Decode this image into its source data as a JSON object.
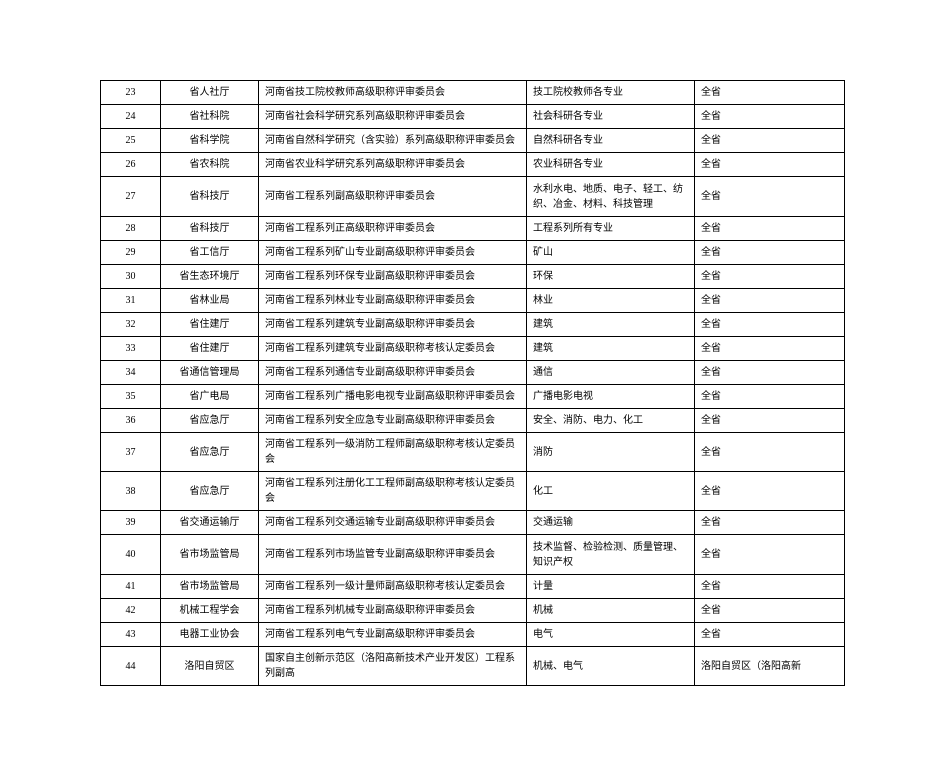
{
  "table": {
    "columns": [
      {
        "key": "num",
        "class": "col-num"
      },
      {
        "key": "dept",
        "class": "col-dept"
      },
      {
        "key": "committee",
        "class": "col-committee"
      },
      {
        "key": "specialty",
        "class": "col-specialty"
      },
      {
        "key": "scope",
        "class": "col-scope"
      }
    ],
    "rows": [
      {
        "num": "23",
        "dept": "省人社厅",
        "committee": "河南省技工院校教师高级职称评审委员会",
        "specialty": "技工院校教师各专业",
        "scope": "全省",
        "tall": false
      },
      {
        "num": "24",
        "dept": "省社科院",
        "committee": "河南省社会科学研究系列高级职称评审委员会",
        "specialty": "社会科研各专业",
        "scope": "全省",
        "tall": false
      },
      {
        "num": "25",
        "dept": "省科学院",
        "committee": "河南省自然科学研究（含实验）系列高级职称评审委员会",
        "specialty": "自然科研各专业",
        "scope": "全省",
        "tall": false
      },
      {
        "num": "26",
        "dept": "省农科院",
        "committee": "河南省农业科学研究系列高级职称评审委员会",
        "specialty": "农业科研各专业",
        "scope": "全省",
        "tall": false
      },
      {
        "num": "27",
        "dept": "省科技厅",
        "committee": "河南省工程系列副高级职称评审委员会",
        "specialty": "水利水电、地质、电子、轻工、纺织、冶金、材料、科技管理",
        "scope": "全省",
        "tall": true
      },
      {
        "num": "28",
        "dept": "省科技厅",
        "committee": "河南省工程系列正高级职称评审委员会",
        "specialty": "工程系列所有专业",
        "scope": "全省",
        "tall": false
      },
      {
        "num": "29",
        "dept": "省工信厅",
        "committee": "河南省工程系列矿山专业副高级职称评审委员会",
        "specialty": "矿山",
        "scope": "全省",
        "tall": false
      },
      {
        "num": "30",
        "dept": "省生态环境厅",
        "committee": "河南省工程系列环保专业副高级职称评审委员会",
        "specialty": "环保",
        "scope": "全省",
        "tall": false
      },
      {
        "num": "31",
        "dept": "省林业局",
        "committee": "河南省工程系列林业专业副高级职称评审委员会",
        "specialty": "林业",
        "scope": "全省",
        "tall": false
      },
      {
        "num": "32",
        "dept": "省住建厅",
        "committee": "河南省工程系列建筑专业副高级职称评审委员会",
        "specialty": "建筑",
        "scope": "全省",
        "tall": false
      },
      {
        "num": "33",
        "dept": "省住建厅",
        "committee": "河南省工程系列建筑专业副高级职称考核认定委员会",
        "specialty": "建筑",
        "scope": "全省",
        "tall": false
      },
      {
        "num": "34",
        "dept": "省通信管理局",
        "committee": "河南省工程系列通信专业副高级职称评审委员会",
        "specialty": "通信",
        "scope": "全省",
        "tall": false
      },
      {
        "num": "35",
        "dept": "省广电局",
        "committee": "河南省工程系列广播电影电视专业副高级职称评审委员会",
        "specialty": "广播电影电视",
        "scope": "全省",
        "tall": false
      },
      {
        "num": "36",
        "dept": "省应急厅",
        "committee": "河南省工程系列安全应急专业副高级职称评审委员会",
        "specialty": "安全、消防、电力、化工",
        "scope": "全省",
        "tall": false
      },
      {
        "num": "37",
        "dept": "省应急厅",
        "committee": "河南省工程系列一级消防工程师副高级职称考核认定委员会",
        "specialty": "消防",
        "scope": "全省",
        "tall": false
      },
      {
        "num": "38",
        "dept": "省应急厅",
        "committee": "河南省工程系列注册化工工程师副高级职称考核认定委员会",
        "specialty": "化工",
        "scope": "全省",
        "tall": false
      },
      {
        "num": "39",
        "dept": "省交通运输厅",
        "committee": "河南省工程系列交通运输专业副高级职称评审委员会",
        "specialty": "交通运输",
        "scope": "全省",
        "tall": false
      },
      {
        "num": "40",
        "dept": "省市场监管局",
        "committee": "河南省工程系列市场监管专业副高级职称评审委员会",
        "specialty": "技术监督、检验检测、质量管理、知识产权",
        "scope": "全省",
        "tall": true
      },
      {
        "num": "41",
        "dept": "省市场监管局",
        "committee": "河南省工程系列一级计量师副高级职称考核认定委员会",
        "specialty": "计量",
        "scope": "全省",
        "tall": false
      },
      {
        "num": "42",
        "dept": "机械工程学会",
        "committee": "河南省工程系列机械专业副高级职称评审委员会",
        "specialty": "机械",
        "scope": "全省",
        "tall": false
      },
      {
        "num": "43",
        "dept": "电器工业协会",
        "committee": "河南省工程系列电气专业副高级职称评审委员会",
        "specialty": "电气",
        "scope": "全省",
        "tall": false
      },
      {
        "num": "44",
        "dept": "洛阳自贸区",
        "committee": "国家自主创新示范区（洛阳高新技术产业开发区）工程系列副高",
        "specialty": "机械、电气",
        "scope": "洛阳自贸区（洛阳高新",
        "tall": false
      }
    ]
  }
}
